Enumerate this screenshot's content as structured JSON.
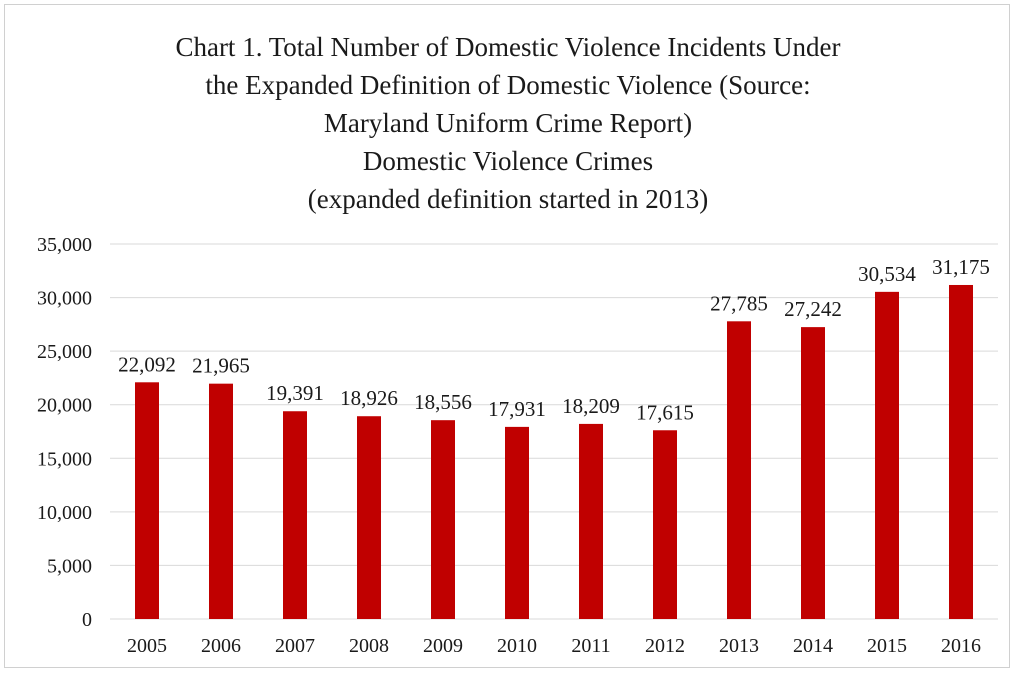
{
  "chart_data": {
    "type": "bar",
    "title_lines": [
      "Chart 1. Total Number of Domestic Violence Incidents Under",
      "the Expanded Definition of Domestic Violence (Source:",
      "Maryland Uniform Crime Report)",
      "Domestic Violence Crimes",
      "(expanded definition started in 2013)"
    ],
    "categories": [
      "2005",
      "2006",
      "2007",
      "2008",
      "2009",
      "2010",
      "2011",
      "2012",
      "2013",
      "2014",
      "2015",
      "2016"
    ],
    "values": [
      22092,
      21965,
      19391,
      18926,
      18556,
      17931,
      18209,
      17615,
      27785,
      27242,
      30534,
      31175
    ],
    "value_labels": [
      "22,092",
      "21,965",
      "19,391",
      "18,926",
      "18,556",
      "17,931",
      "18,209",
      "17,615",
      "27,785",
      "27,242",
      "30,534",
      "31,175"
    ],
    "y_ticks": [
      0,
      5000,
      10000,
      15000,
      20000,
      25000,
      30000,
      35000
    ],
    "y_tick_labels": [
      "0",
      "5,000",
      "10,000",
      "15,000",
      "20,000",
      "25,000",
      "30,000",
      "35,000"
    ],
    "ylim": [
      0,
      35000
    ],
    "grid": true,
    "legend": "none",
    "bar_color": "#c00000",
    "grid_color": "#d9d9d9",
    "xlabel": "",
    "ylabel": ""
  }
}
